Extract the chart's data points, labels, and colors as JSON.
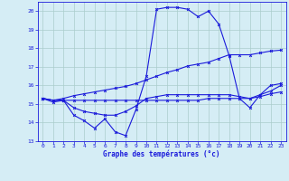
{
  "xlabel": "Graphe des températures (°c)",
  "hours": [
    0,
    1,
    2,
    3,
    4,
    5,
    6,
    7,
    8,
    9,
    10,
    11,
    12,
    13,
    14,
    15,
    16,
    17,
    18,
    19,
    20,
    21,
    22,
    23
  ],
  "temp_actual": [
    15.3,
    15.1,
    15.2,
    14.4,
    14.1,
    13.7,
    14.2,
    13.5,
    13.3,
    14.7,
    16.5,
    20.1,
    20.2,
    20.2,
    20.1,
    19.7,
    20.0,
    19.3,
    17.6,
    15.3,
    14.8,
    15.5,
    16.0,
    16.1
  ],
  "temp_max": [
    15.3,
    15.2,
    15.3,
    15.45,
    15.55,
    15.65,
    15.75,
    15.85,
    15.95,
    16.1,
    16.3,
    16.5,
    16.7,
    16.85,
    17.05,
    17.15,
    17.25,
    17.45,
    17.65,
    17.65,
    17.65,
    17.75,
    17.85,
    17.9
  ],
  "temp_min": [
    15.3,
    15.2,
    15.2,
    15.2,
    15.2,
    15.2,
    15.2,
    15.2,
    15.2,
    15.2,
    15.2,
    15.2,
    15.2,
    15.2,
    15.2,
    15.2,
    15.3,
    15.3,
    15.3,
    15.3,
    15.3,
    15.4,
    15.55,
    15.65
  ],
  "temp_ref": [
    15.3,
    15.2,
    15.2,
    14.8,
    14.6,
    14.5,
    14.4,
    14.4,
    14.6,
    14.9,
    15.3,
    15.4,
    15.5,
    15.5,
    15.5,
    15.5,
    15.5,
    15.5,
    15.5,
    15.4,
    15.3,
    15.5,
    15.7,
    16.0
  ],
  "line_color": "#1a1adb",
  "bg_color": "#d5edf5",
  "grid_color": "#aacccc",
  "ylim": [
    13,
    20.5
  ],
  "yticks": [
    13,
    14,
    15,
    16,
    17,
    18,
    19,
    20
  ],
  "xticks": [
    0,
    1,
    2,
    3,
    4,
    5,
    6,
    7,
    8,
    9,
    10,
    11,
    12,
    13,
    14,
    15,
    16,
    17,
    18,
    19,
    20,
    21,
    22,
    23
  ]
}
